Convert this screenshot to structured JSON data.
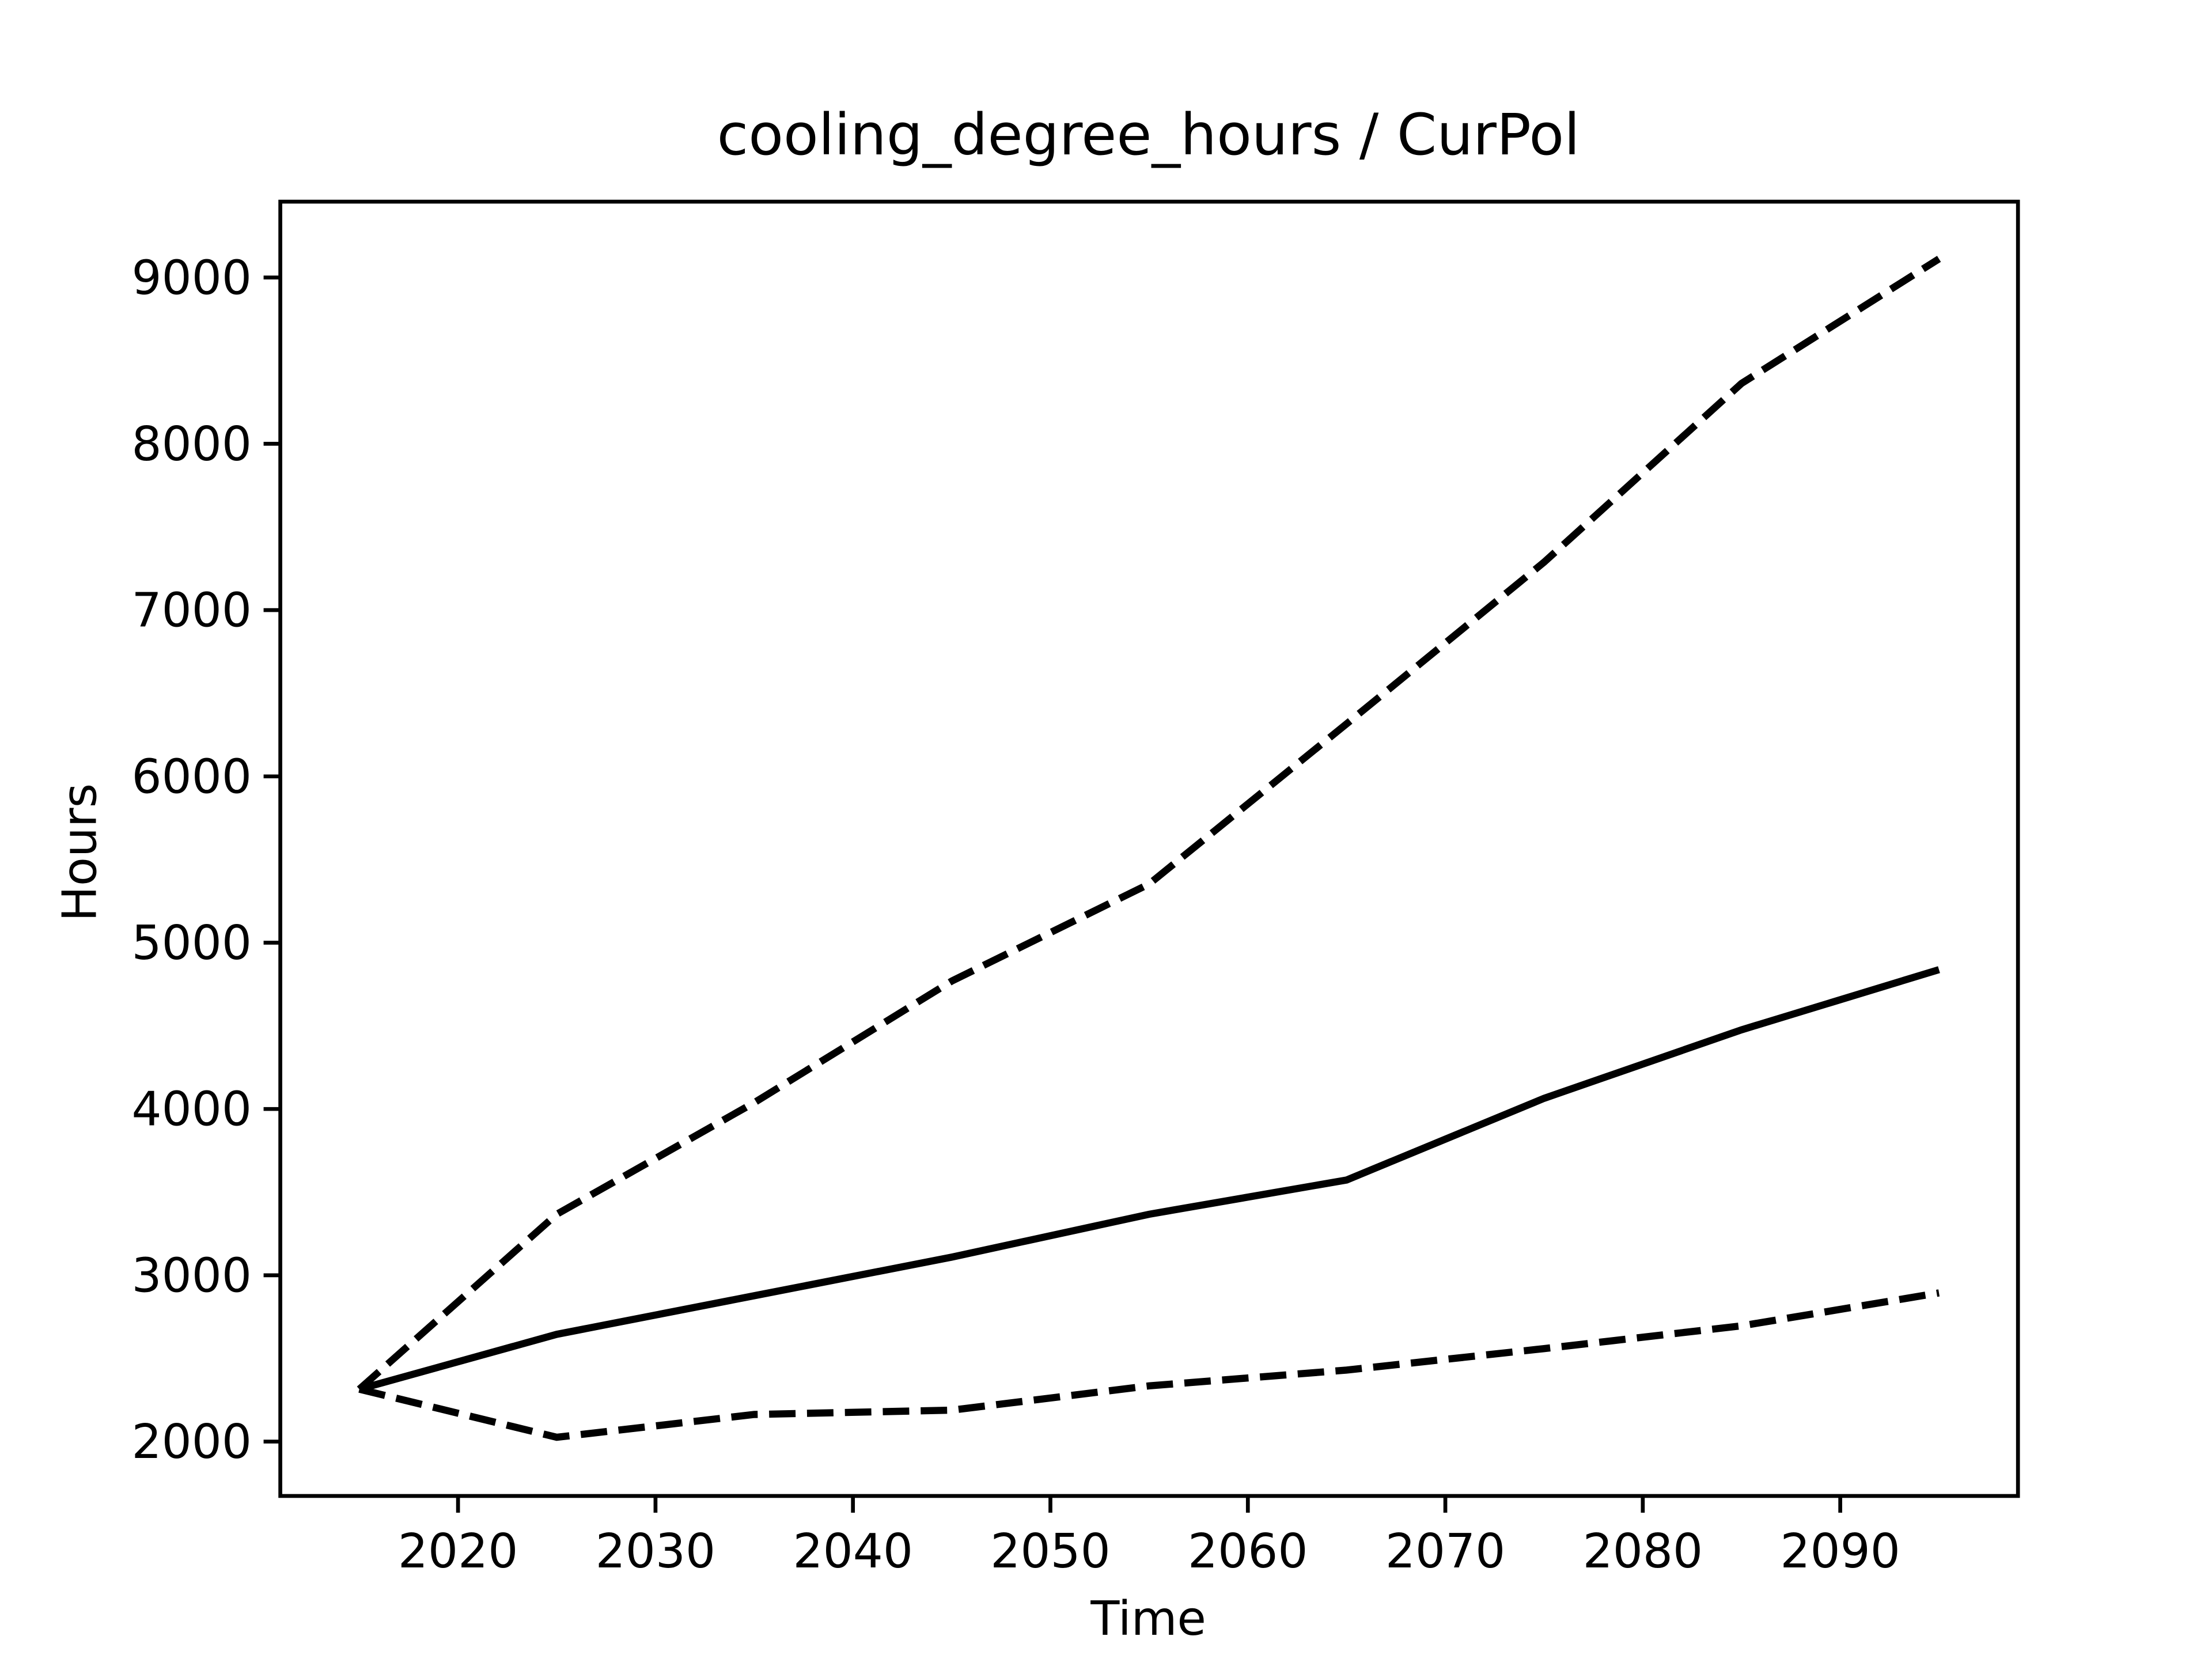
{
  "chart_data": {
    "type": "line",
    "title": "cooling_degree_hours / CurPol",
    "xlabel": "Time",
    "ylabel": "Hours",
    "x": [
      2015,
      2025,
      2035,
      2045,
      2055,
      2065,
      2075,
      2085,
      2095
    ],
    "series": [
      {
        "color": "#000000",
        "dash": "solid",
        "values": [
          2315,
          2645,
          2877,
          3109,
          3367,
          3573,
          4064,
          4476,
          4838
        ]
      },
      {
        "color": "#000000",
        "dash": "dashed",
        "values": [
          2315,
          3367,
          4038,
          4769,
          5353,
          6316,
          7288,
          8363,
          9112
        ]
      },
      {
        "color": "#000000",
        "dash": "dashed",
        "values": [
          2315,
          2026,
          2163,
          2189,
          2335,
          2430,
          2559,
          2696,
          2894
        ]
      }
    ],
    "xlim": [
      2011,
      2099
    ],
    "xticks": [
      2020,
      2030,
      2040,
      2050,
      2060,
      2070,
      2080,
      2090
    ],
    "ylim": [
      1673,
      9456
    ],
    "yticks": [
      2000,
      3000,
      4000,
      5000,
      6000,
      7000,
      8000,
      9000
    ],
    "grid": false
  }
}
